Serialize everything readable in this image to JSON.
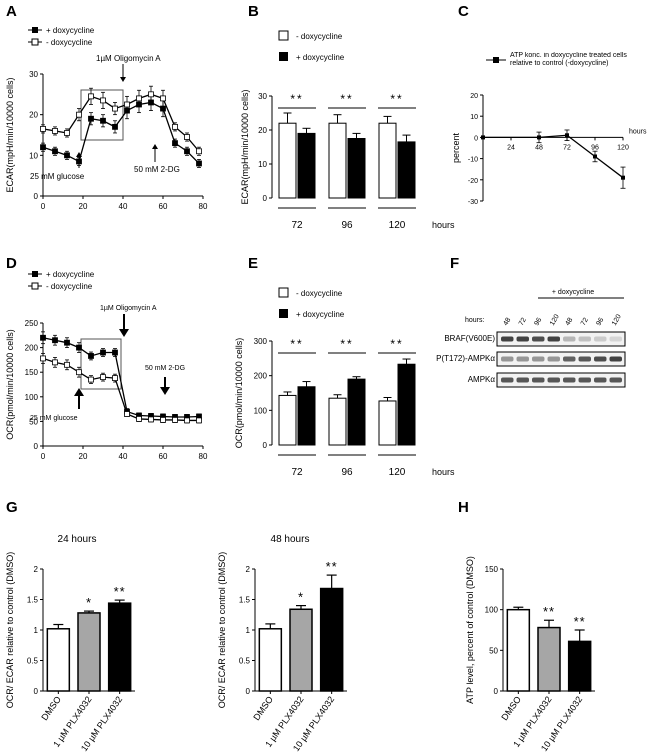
{
  "panels": {
    "A": "A",
    "B": "B",
    "C": "C",
    "D": "D",
    "E": "E",
    "F": "F",
    "G": "G",
    "H": "H"
  },
  "chart_data": [
    {
      "id": "A",
      "type": "line",
      "ylabel": "ECAR(mpH/min/10000 cells)",
      "xlim": [
        0,
        80
      ],
      "ylim": [
        0,
        30
      ],
      "xticks": [
        0,
        20,
        40,
        60,
        80
      ],
      "yticks": [
        0,
        10,
        20,
        30
      ],
      "series": [
        {
          "name": "+ doxycycline",
          "marker": "filled",
          "x": [
            0,
            6,
            12,
            18,
            24,
            30,
            36,
            42,
            48,
            54,
            60,
            66,
            72,
            78
          ],
          "y": [
            12,
            11,
            10,
            8.5,
            19,
            18.5,
            17,
            21,
            22.5,
            23,
            21.5,
            13,
            11,
            8
          ],
          "err": [
            1,
            1,
            1,
            1,
            1.5,
            1.5,
            1.5,
            2,
            2,
            2,
            2,
            1,
            1,
            1
          ]
        },
        {
          "name": "- doxycycline",
          "marker": "open",
          "x": [
            0,
            6,
            12,
            18,
            24,
            30,
            36,
            42,
            48,
            54,
            60,
            66,
            72,
            78
          ],
          "y": [
            16.5,
            16,
            15.5,
            20,
            24.5,
            23.5,
            21.5,
            22.5,
            24,
            25,
            24,
            17,
            14.5,
            11
          ],
          "err": [
            1,
            1,
            1,
            1.5,
            2,
            2,
            1.5,
            2,
            2,
            2,
            2,
            1,
            1,
            1
          ]
        }
      ],
      "annotations": [
        "1µM Oligomycin A",
        "25 mM glucose",
        "50 mM 2-DG"
      ]
    },
    {
      "id": "B",
      "type": "bar",
      "ylabel": "ECAR(mpH/min/10000 cells)",
      "categories": [
        "72",
        "96",
        "120"
      ],
      "x_unit": "hours",
      "ylim": [
        0,
        30
      ],
      "yticks": [
        0,
        10,
        20,
        30
      ],
      "series": [
        {
          "name": "- doxycycline",
          "fill": "white",
          "values": [
            22,
            22,
            22
          ],
          "err": [
            3,
            2.5,
            2
          ]
        },
        {
          "name": "+ doxycycline",
          "fill": "black",
          "values": [
            19,
            17.5,
            16.5
          ],
          "err": [
            1.5,
            1.5,
            2
          ]
        }
      ],
      "significance": [
        "**",
        "**",
        "**"
      ]
    },
    {
      "id": "C",
      "type": "line",
      "legend": "ATP konc. in doxycycline treated cells relative to control (-doxycycline)",
      "ylabel": "percent",
      "x_unit": "hours",
      "xlim": [
        0,
        120
      ],
      "ylim": [
        -30,
        20
      ],
      "xticks": [
        24,
        48,
        72,
        96,
        120
      ],
      "yticks": [
        20,
        10,
        0,
        -10,
        -20,
        -30
      ],
      "series": [
        {
          "name": "ATP",
          "x": [
            0,
            48,
            72,
            96,
            120
          ],
          "y": [
            0,
            0,
            1,
            -9,
            -19
          ],
          "err": [
            0,
            2.5,
            2.5,
            2.5,
            5
          ]
        }
      ]
    },
    {
      "id": "D",
      "type": "line",
      "ylabel": "OCR(pmol/min/10000 cells)",
      "xlim": [
        0,
        80
      ],
      "ylim": [
        0,
        250
      ],
      "xticks": [
        0,
        20,
        40,
        60,
        80
      ],
      "yticks": [
        0,
        50,
        100,
        150,
        200,
        250
      ],
      "series": [
        {
          "name": "+ doxycycline",
          "marker": "filled",
          "x": [
            0,
            6,
            12,
            18,
            24,
            30,
            36,
            42,
            48,
            54,
            60,
            66,
            72,
            78
          ],
          "y": [
            220,
            215,
            210,
            200,
            183,
            190,
            190,
            70,
            62,
            61,
            60,
            59,
            59,
            60
          ],
          "err": [
            12,
            10,
            10,
            10,
            8,
            8,
            8,
            6,
            5,
            5,
            5,
            5,
            5,
            5
          ]
        },
        {
          "name": "- doxycycline",
          "marker": "open",
          "x": [
            0,
            6,
            12,
            18,
            24,
            30,
            36,
            42,
            48,
            54,
            60,
            66,
            72,
            78
          ],
          "y": [
            178,
            170,
            165,
            150,
            135,
            140,
            138,
            65,
            55,
            54,
            53,
            53,
            52,
            52
          ],
          "err": [
            10,
            10,
            10,
            10,
            8,
            8,
            8,
            5,
            5,
            5,
            5,
            5,
            5,
            5
          ]
        }
      ],
      "annotations": [
        "1µM Oligomycin A",
        "25 mM glucose",
        "50 mM 2-DG"
      ]
    },
    {
      "id": "E",
      "type": "bar",
      "ylabel": "OCR(pmol/min/10000 cells)",
      "categories": [
        "72",
        "96",
        "120"
      ],
      "x_unit": "hours",
      "ylim": [
        0,
        300
      ],
      "yticks": [
        0,
        100,
        200,
        300
      ],
      "series": [
        {
          "name": "- doxycycline",
          "fill": "white",
          "values": [
            143,
            135,
            127
          ],
          "err": [
            10,
            10,
            10
          ]
        },
        {
          "name": "+ doxycycline",
          "fill": "black",
          "values": [
            168,
            190,
            233
          ],
          "err": [
            15,
            7,
            15
          ]
        }
      ],
      "significance": [
        "**",
        "**",
        "**"
      ]
    },
    {
      "id": "G1",
      "type": "bar",
      "title": "24 hours",
      "ylabel": "OCR/ ECAR relative to control (DMSO)",
      "categories": [
        "DMSO",
        "1 µM PLX4032",
        "10 µM PLX4032"
      ],
      "values": [
        1.02,
        1.28,
        1.44
      ],
      "err": [
        0.07,
        0.03,
        0.05
      ],
      "fills": [
        "#ffffff",
        "#a6a6a6",
        "#000000"
      ],
      "significance": [
        "",
        "*",
        "**"
      ],
      "ylim": [
        0,
        2.0
      ],
      "yticks": [
        0,
        0.5,
        1.0,
        1.5,
        2.0
      ]
    },
    {
      "id": "G2",
      "type": "bar",
      "title": "48 hours",
      "ylabel": "OCR/ ECAR relative to control (DMSO)",
      "categories": [
        "DMSO",
        "1 µM PLX4032",
        "10 µM PLX4032"
      ],
      "values": [
        1.02,
        1.34,
        1.68
      ],
      "err": [
        0.08,
        0.06,
        0.22
      ],
      "fills": [
        "#ffffff",
        "#a6a6a6",
        "#000000"
      ],
      "significance": [
        "",
        "*",
        "**"
      ],
      "ylim": [
        0,
        2.0
      ],
      "yticks": [
        0,
        0.5,
        1.0,
        1.5,
        2.0
      ]
    },
    {
      "id": "H",
      "type": "bar",
      "ylabel": "ATP level, percent of control (DMSO)",
      "categories": [
        "DMSO",
        "1 µM PLX4032",
        "10 µM PLX4032"
      ],
      "values": [
        100,
        78,
        61
      ],
      "err": [
        3,
        9,
        14
      ],
      "fills": [
        "#ffffff",
        "#a6a6a6",
        "#000000"
      ],
      "significance": [
        "",
        "**",
        "**"
      ],
      "ylim": [
        0,
        150
      ],
      "yticks": [
        0,
        50,
        100,
        150
      ]
    }
  ],
  "blot": {
    "header": "+ doxycycline",
    "hours_label": "hours:",
    "lanes": [
      "48",
      "72",
      "96",
      "120",
      "48",
      "72",
      "96",
      "120"
    ],
    "rows": [
      "BRAF(V600E)",
      "P(T172)-AMPKα",
      "AMPKα"
    ],
    "intensities": [
      [
        0.9,
        0.9,
        0.85,
        0.9,
        0.35,
        0.3,
        0.25,
        0.2
      ],
      [
        0.5,
        0.5,
        0.5,
        0.5,
        0.75,
        0.8,
        0.85,
        0.9
      ],
      [
        0.8,
        0.8,
        0.8,
        0.8,
        0.8,
        0.8,
        0.8,
        0.8
      ]
    ]
  }
}
